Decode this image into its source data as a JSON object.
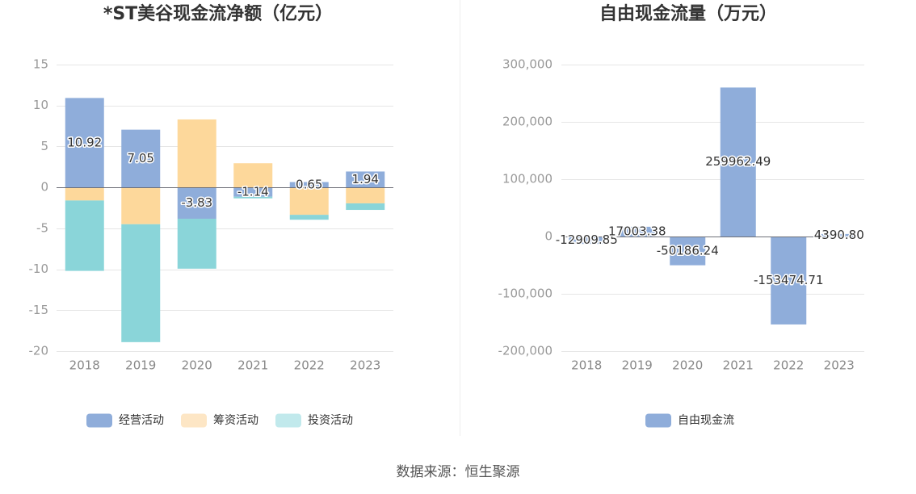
{
  "source": "数据来源：恒生聚源",
  "chart_data": [
    {
      "type": "bar",
      "stacked": true,
      "title": "*ST美谷现金流净额（亿元）",
      "categories": [
        "2018",
        "2019",
        "2020",
        "2021",
        "2022",
        "2023"
      ],
      "series": [
        {
          "name": "经营活动",
          "values": [
            10.92,
            7.05,
            -3.83,
            -1.14,
            0.65,
            1.94
          ],
          "data_labels": [
            "10.92",
            "7.05",
            "-3.83",
            "-1.14",
            "0.65",
            "1.94"
          ],
          "color": "#8fadda",
          "legend_color": "#8fadda"
        },
        {
          "name": "筹资活动",
          "values": [
            -1.6,
            -4.5,
            8.3,
            2.95,
            -3.35,
            -1.95
          ],
          "color": "#fdd89b",
          "legend_color": "#fde6c5"
        },
        {
          "name": "投资活动",
          "values": [
            -8.6,
            -14.4,
            -6.1,
            -0.2,
            -0.6,
            -0.8
          ],
          "color": "#8ad5d9",
          "legend_color": "#c1e9ec"
        }
      ],
      "ylim": [
        -20,
        15
      ],
      "yticks": [
        15,
        10,
        5,
        0,
        -5,
        -10,
        -15,
        -20
      ],
      "ytick_labels": [
        "15",
        "10",
        "5",
        "0",
        "-5",
        "-10",
        "-15",
        "-20"
      ],
      "grid": true,
      "legend_position": "bottom"
    },
    {
      "type": "bar",
      "stacked": false,
      "title": "自由现金流量（万元）",
      "categories": [
        "2018",
        "2019",
        "2020",
        "2021",
        "2022",
        "2023"
      ],
      "series": [
        {
          "name": "自由现金流",
          "values": [
            -12909.85,
            17003.38,
            -50186.24,
            259962.49,
            -153474.71,
            4390.8
          ],
          "data_labels": [
            "-12909.85",
            "17003.38",
            "-50186.24",
            "259962.49",
            "-153474.71",
            "4390.80"
          ],
          "color": "#8fadda",
          "legend_color": "#8fadda"
        }
      ],
      "ylim": [
        -200000,
        300000
      ],
      "yticks": [
        300000,
        200000,
        100000,
        0,
        -100000,
        -200000
      ],
      "ytick_labels": [
        "300,000",
        "200,000",
        "100,000",
        "0",
        "-100,000",
        "-200,000"
      ],
      "grid": true,
      "legend_position": "bottom"
    }
  ]
}
